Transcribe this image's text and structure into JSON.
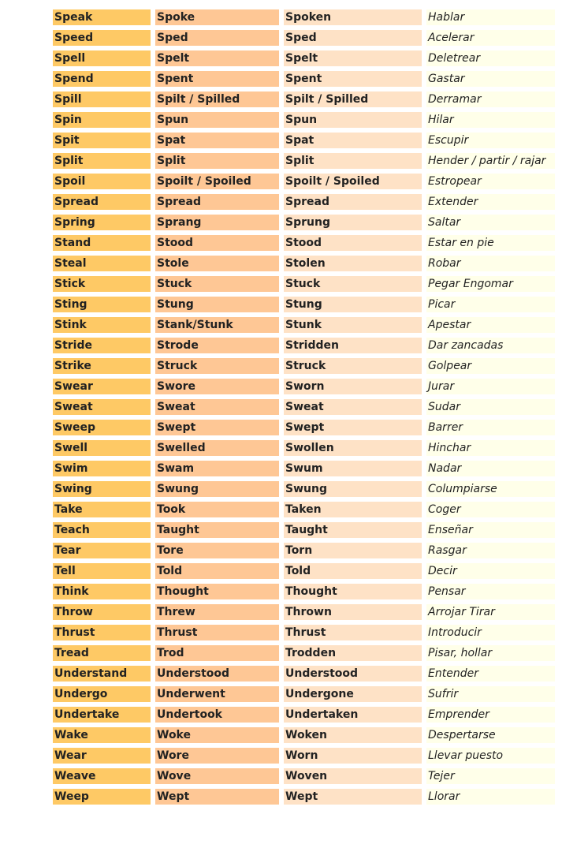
{
  "table": {
    "rows": [
      [
        "Speak",
        "Spoke",
        "Spoken",
        "Hablar"
      ],
      [
        "Speed",
        "Sped",
        "Sped",
        "Acelerar"
      ],
      [
        "Spell",
        "Spelt",
        "Spelt",
        "Deletrear"
      ],
      [
        "Spend",
        "Spent",
        "Spent",
        "Gastar"
      ],
      [
        "Spill",
        "Spilt / Spilled",
        "Spilt / Spilled",
        "Derramar"
      ],
      [
        "Spin",
        "Spun",
        "Spun",
        "Hilar"
      ],
      [
        "Spit",
        "Spat",
        "Spat",
        "Escupir"
      ],
      [
        "Split",
        "Split",
        "Split",
        "Hender / partir / rajar"
      ],
      [
        "Spoil",
        "Spoilt / Spoiled",
        "Spoilt / Spoiled",
        "Estropear"
      ],
      [
        "Spread",
        "Spread",
        "Spread",
        "Extender"
      ],
      [
        "Spring",
        "Sprang",
        "Sprung",
        "Saltar"
      ],
      [
        "Stand",
        "Stood",
        "Stood",
        "Estar en pie"
      ],
      [
        "Steal",
        "Stole",
        "Stolen",
        "Robar"
      ],
      [
        "Stick",
        "Stuck",
        "Stuck",
        "Pegar Engomar"
      ],
      [
        "Sting",
        "Stung",
        "Stung",
        "Picar"
      ],
      [
        "Stink",
        "Stank/Stunk",
        "Stunk",
        "Apestar"
      ],
      [
        "Stride",
        "Strode",
        "Stridden",
        "Dar zancadas"
      ],
      [
        "Strike",
        "Struck",
        "Struck",
        "Golpear"
      ],
      [
        "Swear",
        "Swore",
        "Sworn",
        "Jurar"
      ],
      [
        "Sweat",
        "Sweat",
        "Sweat",
        "Sudar"
      ],
      [
        "Sweep",
        "Swept",
        "Swept",
        "Barrer"
      ],
      [
        "Swell",
        "Swelled",
        "Swollen",
        "Hinchar"
      ],
      [
        "Swim",
        "Swam",
        "Swum",
        "Nadar"
      ],
      [
        "Swing",
        "Swung",
        "Swung",
        "Columpiarse"
      ],
      [
        "Take",
        "Took",
        "Taken",
        "Coger"
      ],
      [
        "Teach",
        "Taught",
        "Taught",
        "Enseñar"
      ],
      [
        "Tear",
        "Tore",
        "Torn",
        "Rasgar"
      ],
      [
        "Tell",
        "Told",
        "Told",
        "Decir"
      ],
      [
        "Think",
        "Thought",
        "Thought",
        "Pensar"
      ],
      [
        "Throw",
        "Threw",
        "Thrown",
        "Arrojar Tirar"
      ],
      [
        "Thrust",
        "Thrust",
        "Thrust",
        "Introducir"
      ],
      [
        "Tread",
        "Trod",
        "Trodden",
        "Pisar, hollar"
      ],
      [
        "Understand",
        "Understood",
        "Understood",
        "Entender"
      ],
      [
        "Undergo",
        "Underwent",
        "Undergone",
        "Sufrir"
      ],
      [
        "Undertake",
        "Undertook",
        "Undertaken",
        "Emprender"
      ],
      [
        "Wake",
        "Woke",
        "Woken",
        "Despertarse"
      ],
      [
        "Wear",
        "Wore",
        "Worn",
        "Llevar puesto"
      ],
      [
        "Weave",
        "Wove",
        "Woven",
        "Tejer"
      ],
      [
        "Weep",
        "Wept",
        "Wept",
        "Llorar"
      ]
    ]
  }
}
